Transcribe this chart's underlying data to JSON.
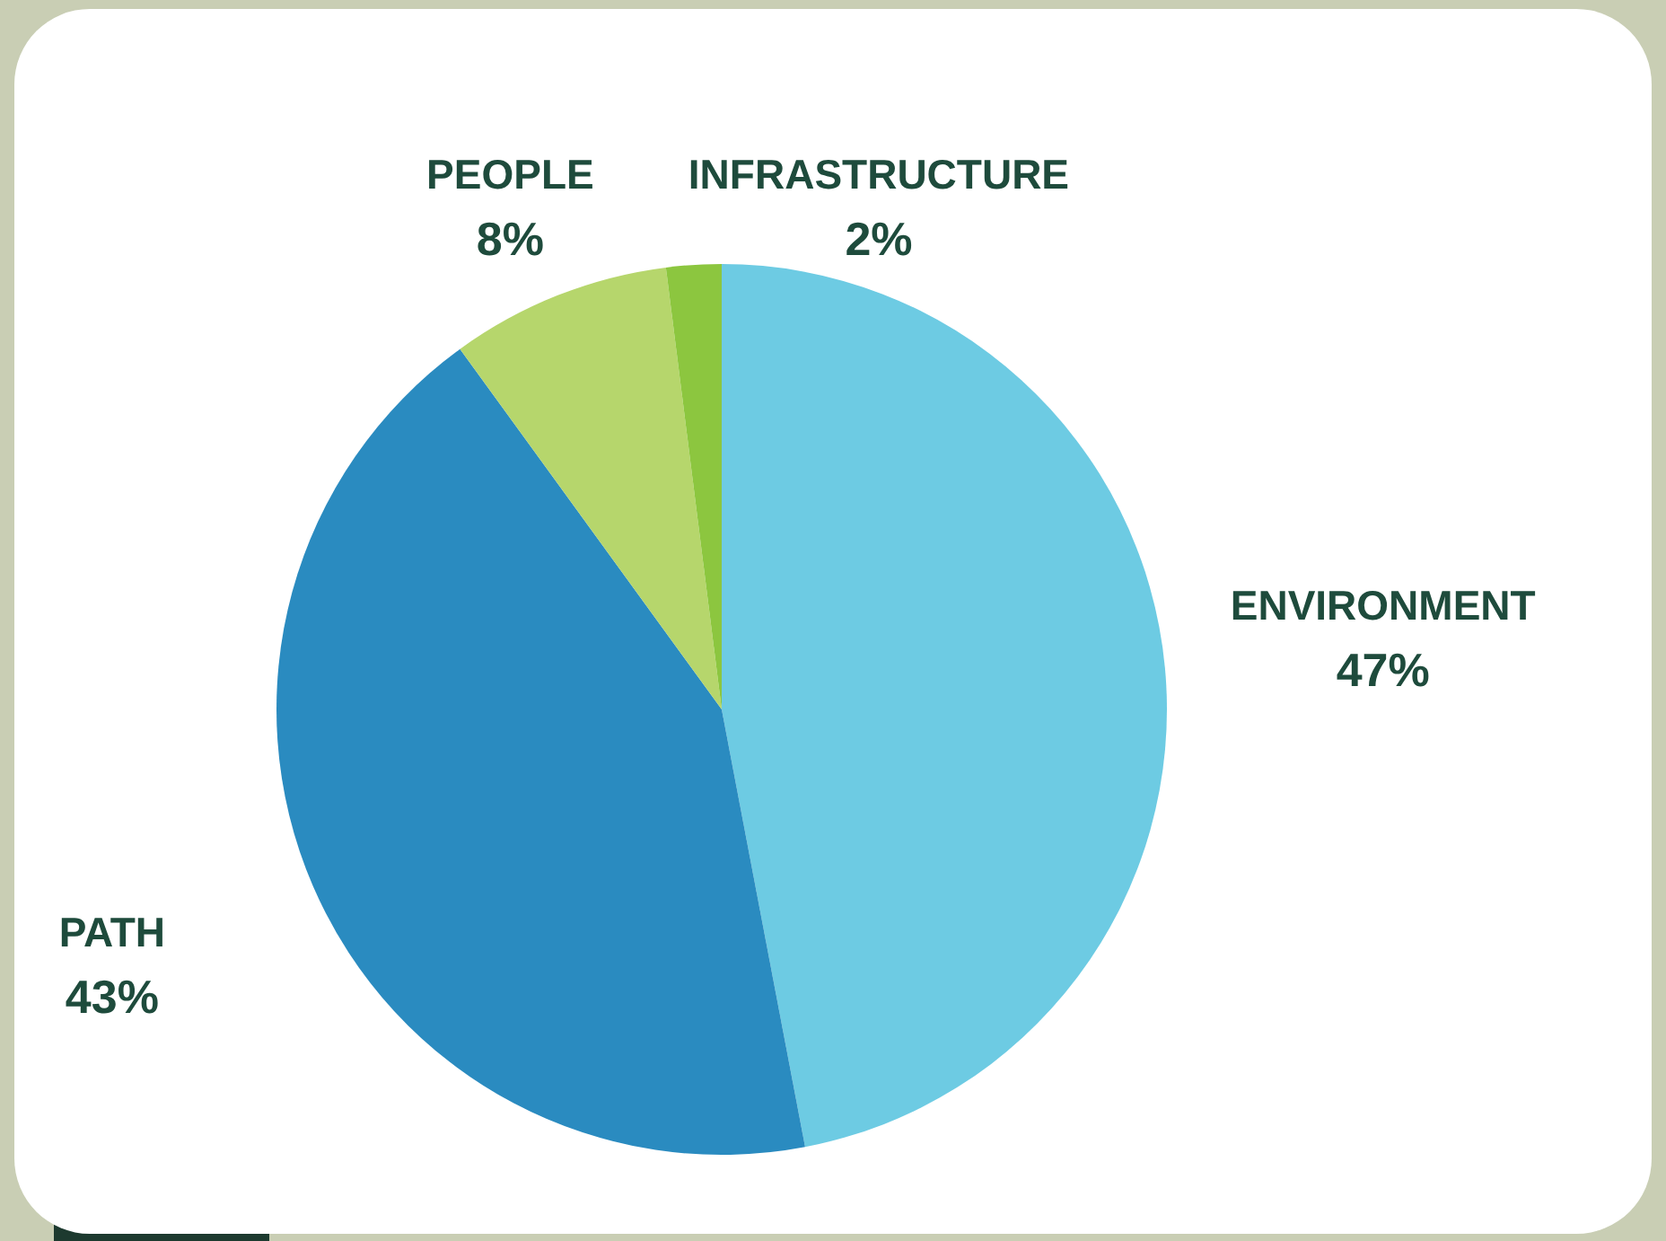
{
  "chart_data": {
    "type": "pie",
    "categories": [
      "ENVIRONMENT",
      "PATH",
      "PEOPLE",
      "INFRASTRUCTURE"
    ],
    "values": [
      47,
      43,
      8,
      2
    ],
    "colors": [
      "#6dcbe3",
      "#2a8bc0",
      "#b6d66c",
      "#8cc63f"
    ],
    "value_labels": [
      "47%",
      "43%",
      "8%",
      "2%"
    ]
  }
}
